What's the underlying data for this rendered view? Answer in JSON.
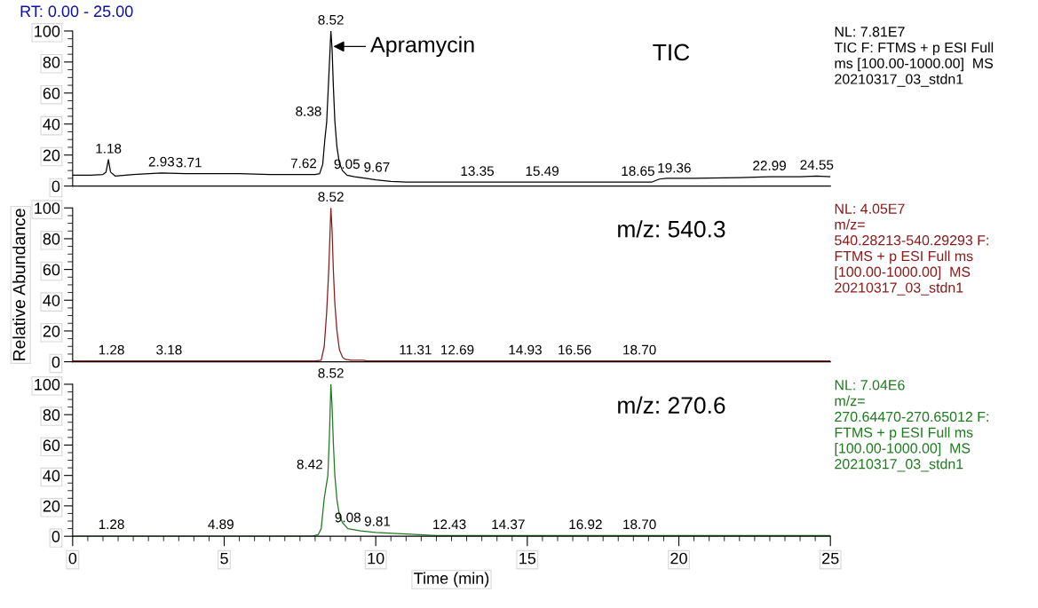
{
  "chart_data": [
    {
      "type": "line",
      "xlim": [
        0,
        25
      ],
      "xticks": [
        0,
        5,
        10,
        15,
        20,
        25
      ],
      "ylim": [
        0,
        100
      ],
      "yticks": [
        0,
        20,
        40,
        60,
        80,
        100
      ],
      "tick_labels": "y",
      "grid": false,
      "legend": false,
      "series": [
        {
          "color": "#000000",
          "x": [
            0,
            0.6,
            1.0,
            1.1,
            1.18,
            1.25,
            1.4,
            2.0,
            2.93,
            3.71,
            4.5,
            5.5,
            6.5,
            7.2,
            7.62,
            8.0,
            8.15,
            8.25,
            8.32,
            8.38,
            8.45,
            8.52,
            8.56,
            8.6,
            8.65,
            8.72,
            8.8,
            8.9,
            9.05,
            9.3,
            9.67,
            10.0,
            10.5,
            11.0,
            12.0,
            13.35,
            15.49,
            17.0,
            18.65,
            19.1,
            19.36,
            19.6,
            20.5,
            22.0,
            22.99,
            24.0,
            24.55,
            25.0
          ],
          "values": [
            7,
            7,
            7.5,
            9,
            17,
            9,
            6.5,
            7.5,
            8.5,
            8,
            8,
            8,
            7.5,
            7.5,
            7.5,
            7.5,
            8,
            14,
            30,
            41,
            70,
            100,
            88,
            65,
            42,
            25,
            15,
            10,
            7,
            6,
            5,
            4,
            3,
            2.5,
            2.5,
            2.5,
            2.5,
            2.5,
            2.5,
            2.5,
            4.5,
            5,
            5,
            5.5,
            6,
            6,
            6.5,
            6
          ]
        }
      ],
      "annotations": [
        "RT: 0.00 - 25.00",
        "TIC",
        "NL: 7.81E7\nTIC F: FTMS + p ESI Full\nms [100.00-1000.00]  MS\n20210317_03_stdn1",
        {
          "text": "Apramycin",
          "x": 8.6,
          "y": 90
        },
        {
          "text": "8.52",
          "x": 8.52,
          "y": 100
        },
        {
          "text": "1.18",
          "x": 1.18,
          "y": 17
        },
        {
          "text": "2.93",
          "x": 2.93,
          "y": 8.5
        },
        {
          "text": "3.71",
          "x": 3.71,
          "y": 8
        },
        {
          "text": "7.62",
          "x": 7.62,
          "y": 7.5
        },
        {
          "text": "8.38",
          "x": 8.38,
          "y": 41
        },
        {
          "text": "9.05",
          "x": 9.05,
          "y": 7
        },
        {
          "text": "9.67",
          "x": 9.67,
          "y": 5
        },
        {
          "text": "13.35",
          "x": 13.35,
          "y": 2.5
        },
        {
          "text": "15.49",
          "x": 15.49,
          "y": 2.5
        },
        {
          "text": "18.65",
          "x": 18.65,
          "y": 2.5
        },
        {
          "text": "19.36",
          "x": 19.36,
          "y": 4.5
        },
        {
          "text": "22.99",
          "x": 22.99,
          "y": 6
        },
        {
          "text": "24.55",
          "x": 24.55,
          "y": 6.5
        }
      ]
    },
    {
      "type": "line",
      "xlim": [
        0,
        25
      ],
      "xticks": [
        0,
        5,
        10,
        15,
        20,
        25
      ],
      "ylim": [
        0,
        100
      ],
      "yticks": [
        0,
        20,
        40,
        60,
        80,
        100
      ],
      "tick_labels": "y",
      "grid": false,
      "legend": false,
      "ylabel": "Relative Abundance",
      "series": [
        {
          "color": "#8b1a1a",
          "x": [
            0,
            8.0,
            8.2,
            8.3,
            8.38,
            8.45,
            8.52,
            8.56,
            8.6,
            8.65,
            8.72,
            8.8,
            8.9,
            9.0,
            9.2,
            9.6,
            9.7,
            25
          ],
          "values": [
            0.5,
            0.5,
            1,
            10,
            32,
            60,
            100,
            85,
            60,
            38,
            20,
            8,
            3,
            1.5,
            1,
            1,
            0.5,
            0.5
          ]
        }
      ],
      "annotations": [
        "m/z: 540.3",
        "NL: 4.05E7\nm/z=\n540.28213-540.29293 F:\nFTMS + p ESI Full ms\n[100.00-1000.00]  MS\n20210317_03_stdn1",
        {
          "text": "8.52",
          "x": 8.52,
          "y": 100
        },
        {
          "text": "1.28",
          "x": 1.28,
          "y": 0.5
        },
        {
          "text": "3.18",
          "x": 3.18,
          "y": 0.5
        },
        {
          "text": "11.31",
          "x": 11.31,
          "y": 0.5
        },
        {
          "text": "12.69",
          "x": 12.69,
          "y": 0.5
        },
        {
          "text": "14.93",
          "x": 14.93,
          "y": 0.5
        },
        {
          "text": "16.56",
          "x": 16.56,
          "y": 0.5
        },
        {
          "text": "18.70",
          "x": 18.7,
          "y": 0.5
        }
      ]
    },
    {
      "type": "line",
      "xlim": [
        0,
        25
      ],
      "xticks": [
        0,
        5,
        10,
        15,
        20,
        25
      ],
      "ylim": [
        0,
        100
      ],
      "yticks": [
        0,
        20,
        40,
        60,
        80,
        100
      ],
      "grid": false,
      "legend": false,
      "xlabel": "Time (min)",
      "series": [
        {
          "color": "#1e7a1e",
          "x": [
            0,
            7.9,
            8.1,
            8.2,
            8.3,
            8.42,
            8.47,
            8.52,
            8.56,
            8.6,
            8.65,
            8.72,
            8.8,
            8.9,
            9.08,
            9.5,
            10.0,
            11.0,
            12.0,
            25
          ],
          "values": [
            0,
            0,
            1,
            5,
            25,
            40,
            65,
            100,
            85,
            62,
            40,
            24,
            14,
            9,
            5,
            3.5,
            2.5,
            1.5,
            0.5,
            0.5
          ]
        }
      ],
      "annotations": [
        "m/z: 270.6",
        "NL: 7.04E6\nm/z=\n270.64470-270.65012 F:\nFTMS + p ESI Full ms\n[100.00-1000.00]  MS\n20210317_03_stdn1",
        {
          "text": "8.52",
          "x": 8.52,
          "y": 100
        },
        {
          "text": "8.42",
          "x": 8.42,
          "y": 40
        },
        {
          "text": "1.28",
          "x": 1.28,
          "y": 0.5
        },
        {
          "text": "4.89",
          "x": 4.89,
          "y": 0.5
        },
        {
          "text": "9.08",
          "x": 9.08,
          "y": 5
        },
        {
          "text": "9.81",
          "x": 9.81,
          "y": 2.5
        },
        {
          "text": "12.43",
          "x": 12.43,
          "y": 0.5
        },
        {
          "text": "14.37",
          "x": 14.37,
          "y": 0.5
        },
        {
          "text": "16.92",
          "x": 16.92,
          "y": 0.5
        },
        {
          "text": "18.70",
          "x": 18.7,
          "y": 0.5
        }
      ]
    }
  ]
}
